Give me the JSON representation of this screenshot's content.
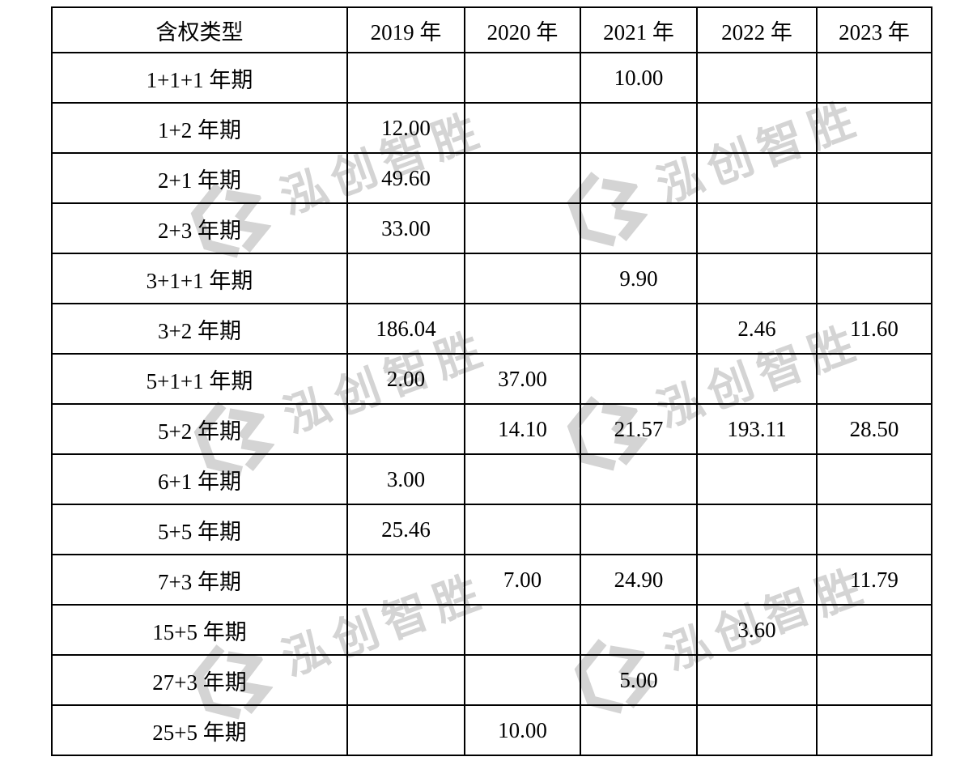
{
  "page": {
    "background": "#ffffff",
    "text_color": "#000000",
    "border_color": "#000000"
  },
  "table": {
    "columns": [
      "含权类型",
      "2019 年",
      "2020 年",
      "2021 年",
      "2022 年",
      "2023 年"
    ],
    "rows": [
      {
        "label": "1+1+1 年期",
        "values": [
          "",
          "",
          "10.00",
          "",
          ""
        ]
      },
      {
        "label": "1+2 年期",
        "values": [
          "12.00",
          "",
          "",
          "",
          ""
        ]
      },
      {
        "label": "2+1 年期",
        "values": [
          "49.60",
          "",
          "",
          "",
          ""
        ]
      },
      {
        "label": "2+3 年期",
        "values": [
          "33.00",
          "",
          "",
          "",
          ""
        ]
      },
      {
        "label": "3+1+1 年期",
        "values": [
          "",
          "",
          "9.90",
          "",
          ""
        ]
      },
      {
        "label": "3+2 年期",
        "values": [
          "186.04",
          "",
          "",
          "2.46",
          "11.60"
        ]
      },
      {
        "label": "5+1+1 年期",
        "values": [
          "2.00",
          "37.00",
          "",
          "",
          ""
        ]
      },
      {
        "label": "5+2 年期",
        "values": [
          "",
          "14.10",
          "21.57",
          "193.11",
          "28.50"
        ]
      },
      {
        "label": "6+1 年期",
        "values": [
          "3.00",
          "",
          "",
          "",
          ""
        ]
      },
      {
        "label": "5+5 年期",
        "values": [
          "25.46",
          "",
          "",
          "",
          ""
        ]
      },
      {
        "label": "7+3 年期",
        "values": [
          "",
          "7.00",
          "24.90",
          "",
          "11.79"
        ]
      },
      {
        "label": "15+5 年期",
        "values": [
          "",
          "",
          "",
          "3.60",
          ""
        ]
      },
      {
        "label": "27+3 年期",
        "values": [
          "",
          "",
          "5.00",
          "",
          ""
        ]
      },
      {
        "label": "25+5 年期",
        "values": [
          "",
          "10.00",
          "",
          "",
          ""
        ]
      }
    ]
  },
  "watermark": {
    "text": "泓创智胜",
    "logo_icon": "hc-cube-logo-icon",
    "color": "#d4d4d4"
  }
}
